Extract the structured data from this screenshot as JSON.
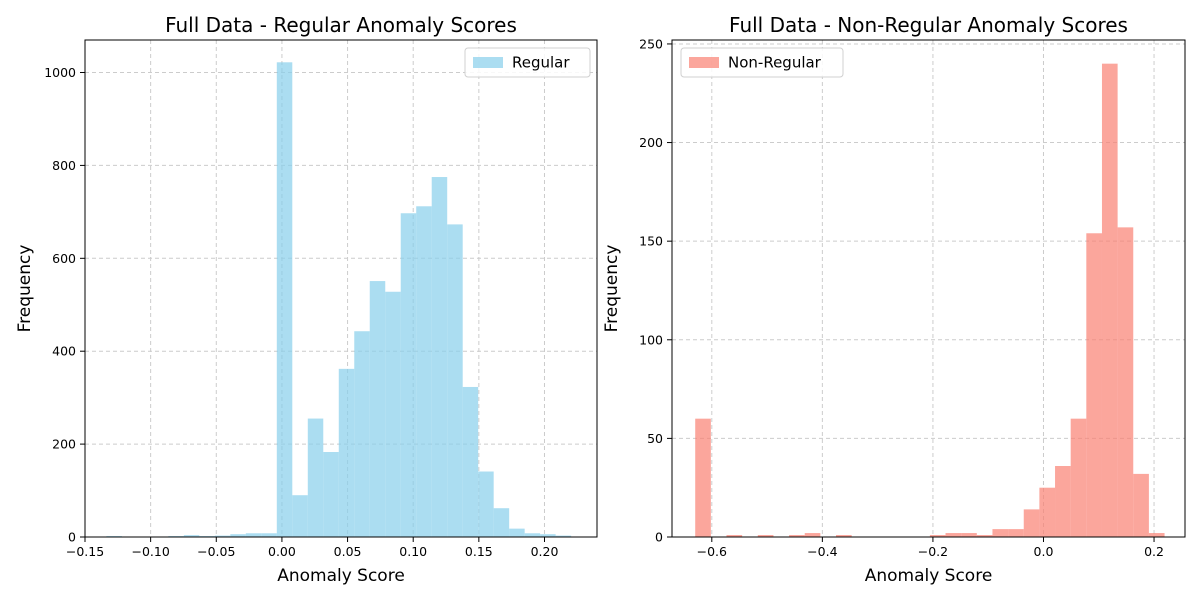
{
  "chart_data": [
    {
      "type": "bar",
      "title": "Full Data - Regular Anomaly Scores",
      "xlabel": "Anomaly Score",
      "ylabel": "Frequency",
      "xlim": [
        -0.15,
        0.24
      ],
      "ylim": [
        0,
        1070
      ],
      "xticks": [
        -0.15,
        -0.1,
        -0.05,
        0.0,
        0.05,
        0.1,
        0.15,
        0.2
      ],
      "xtick_labels": [
        "−0.15",
        "−0.10",
        "−0.05",
        "0.00",
        "0.05",
        "0.10",
        "0.15",
        "0.20"
      ],
      "yticks": [
        0,
        200,
        400,
        600,
        800,
        1000
      ],
      "ytick_labels": [
        "0",
        "200",
        "400",
        "600",
        "800",
        "1000"
      ],
      "grid": true,
      "legend": "top-right",
      "color": "#87ceeb",
      "series": [
        {
          "name": "Regular",
          "bin_width": 0.0118,
          "bins": [
            {
              "x": -0.1337,
              "count": 2
            },
            {
              "x": -0.1219,
              "count": 1
            },
            {
              "x": -0.1101,
              "count": 0
            },
            {
              "x": -0.0983,
              "count": 0
            },
            {
              "x": -0.0865,
              "count": 2
            },
            {
              "x": -0.0747,
              "count": 4
            },
            {
              "x": -0.0629,
              "count": 2
            },
            {
              "x": -0.0511,
              "count": 3
            },
            {
              "x": -0.0393,
              "count": 6
            },
            {
              "x": -0.0275,
              "count": 8
            },
            {
              "x": -0.0157,
              "count": 8
            },
            {
              "x": -0.0039,
              "count": 1022
            },
            {
              "x": 0.0079,
              "count": 90
            },
            {
              "x": 0.0197,
              "count": 255
            },
            {
              "x": 0.0315,
              "count": 183
            },
            {
              "x": 0.0433,
              "count": 362
            },
            {
              "x": 0.0551,
              "count": 443
            },
            {
              "x": 0.0669,
              "count": 551
            },
            {
              "x": 0.0787,
              "count": 528
            },
            {
              "x": 0.0905,
              "count": 697
            },
            {
              "x": 0.1023,
              "count": 712
            },
            {
              "x": 0.1141,
              "count": 775
            },
            {
              "x": 0.1259,
              "count": 673
            },
            {
              "x": 0.1377,
              "count": 323
            },
            {
              "x": 0.1495,
              "count": 141
            },
            {
              "x": 0.1613,
              "count": 62
            },
            {
              "x": 0.1731,
              "count": 18
            },
            {
              "x": 0.1849,
              "count": 8
            },
            {
              "x": 0.1967,
              "count": 6
            },
            {
              "x": 0.2085,
              "count": 3
            }
          ]
        }
      ]
    },
    {
      "type": "bar",
      "title": "Full Data - Non-Regular Anomaly Scores",
      "xlabel": "Anomaly Score",
      "ylabel": "Frequency",
      "xlim": [
        -0.672,
        0.256
      ],
      "ylim": [
        0,
        252
      ],
      "xticks": [
        -0.6,
        -0.4,
        -0.2,
        0.0,
        0.2
      ],
      "xtick_labels": [
        "−0.6",
        "−0.4",
        "−0.2",
        "0.0",
        "0.2"
      ],
      "yticks": [
        0,
        50,
        100,
        150,
        200,
        250
      ],
      "ytick_labels": [
        "0",
        "50",
        "100",
        "150",
        "200",
        "250"
      ],
      "grid": true,
      "legend": "top-left",
      "color": "#fa8072",
      "series": [
        {
          "name": "Non-Regular",
          "bin_width": 0.0283,
          "bins": [
            {
              "x": -0.63,
              "count": 60
            },
            {
              "x": -0.6017,
              "count": 0
            },
            {
              "x": -0.5734,
              "count": 1
            },
            {
              "x": -0.5451,
              "count": 0
            },
            {
              "x": -0.5168,
              "count": 1
            },
            {
              "x": -0.4885,
              "count": 0
            },
            {
              "x": -0.4602,
              "count": 1
            },
            {
              "x": -0.4319,
              "count": 2
            },
            {
              "x": -0.4036,
              "count": 0
            },
            {
              "x": -0.3753,
              "count": 1
            },
            {
              "x": -0.347,
              "count": 0
            },
            {
              "x": -0.3187,
              "count": 0
            },
            {
              "x": -0.2904,
              "count": 0
            },
            {
              "x": -0.2621,
              "count": 0
            },
            {
              "x": -0.2338,
              "count": 0
            },
            {
              "x": -0.2055,
              "count": 1
            },
            {
              "x": -0.1772,
              "count": 2
            },
            {
              "x": -0.1489,
              "count": 2
            },
            {
              "x": -0.1206,
              "count": 1
            },
            {
              "x": -0.0923,
              "count": 4
            },
            {
              "x": -0.064,
              "count": 4
            },
            {
              "x": -0.0357,
              "count": 14
            },
            {
              "x": -0.0074,
              "count": 25
            },
            {
              "x": 0.0209,
              "count": 36
            },
            {
              "x": 0.0492,
              "count": 60
            },
            {
              "x": 0.0775,
              "count": 154
            },
            {
              "x": 0.1058,
              "count": 240
            },
            {
              "x": 0.1341,
              "count": 157
            },
            {
              "x": 0.1624,
              "count": 32
            },
            {
              "x": 0.1907,
              "count": 2
            }
          ]
        }
      ]
    }
  ]
}
